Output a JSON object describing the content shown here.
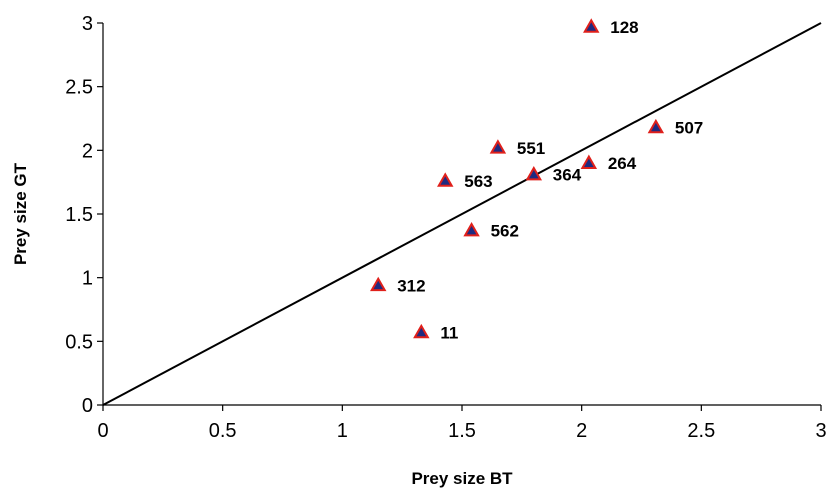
{
  "chart_data": {
    "type": "scatter",
    "title": "",
    "xlabel": "Prey size BT",
    "ylabel": "Prey size GT",
    "xlim": [
      0,
      3
    ],
    "ylim": [
      0,
      3
    ],
    "x_ticks": [
      "0",
      "0.5",
      "1",
      "1.5",
      "2",
      "2.5",
      "3"
    ],
    "y_ticks": [
      "0",
      "0.5",
      "1",
      "1.5",
      "2",
      "2.5",
      "3"
    ],
    "grid": false,
    "legend": "none",
    "marker": "triangle",
    "marker_fill": "#1f2a80",
    "marker_edge": "#e0201b",
    "reference_line": {
      "x": [
        0,
        3
      ],
      "y": [
        0,
        3
      ]
    },
    "points": [
      {
        "label": "128",
        "x": 2.04,
        "y": 2.97
      },
      {
        "label": "507",
        "x": 2.31,
        "y": 2.18
      },
      {
        "label": "551",
        "x": 1.65,
        "y": 2.02
      },
      {
        "label": "264",
        "x": 2.03,
        "y": 1.9
      },
      {
        "label": "364",
        "x": 1.8,
        "y": 1.81
      },
      {
        "label": "563",
        "x": 1.43,
        "y": 1.76
      },
      {
        "label": "562",
        "x": 1.54,
        "y": 1.37
      },
      {
        "label": "312",
        "x": 1.15,
        "y": 0.94
      },
      {
        "label": "11",
        "x": 1.33,
        "y": 0.57
      }
    ]
  }
}
